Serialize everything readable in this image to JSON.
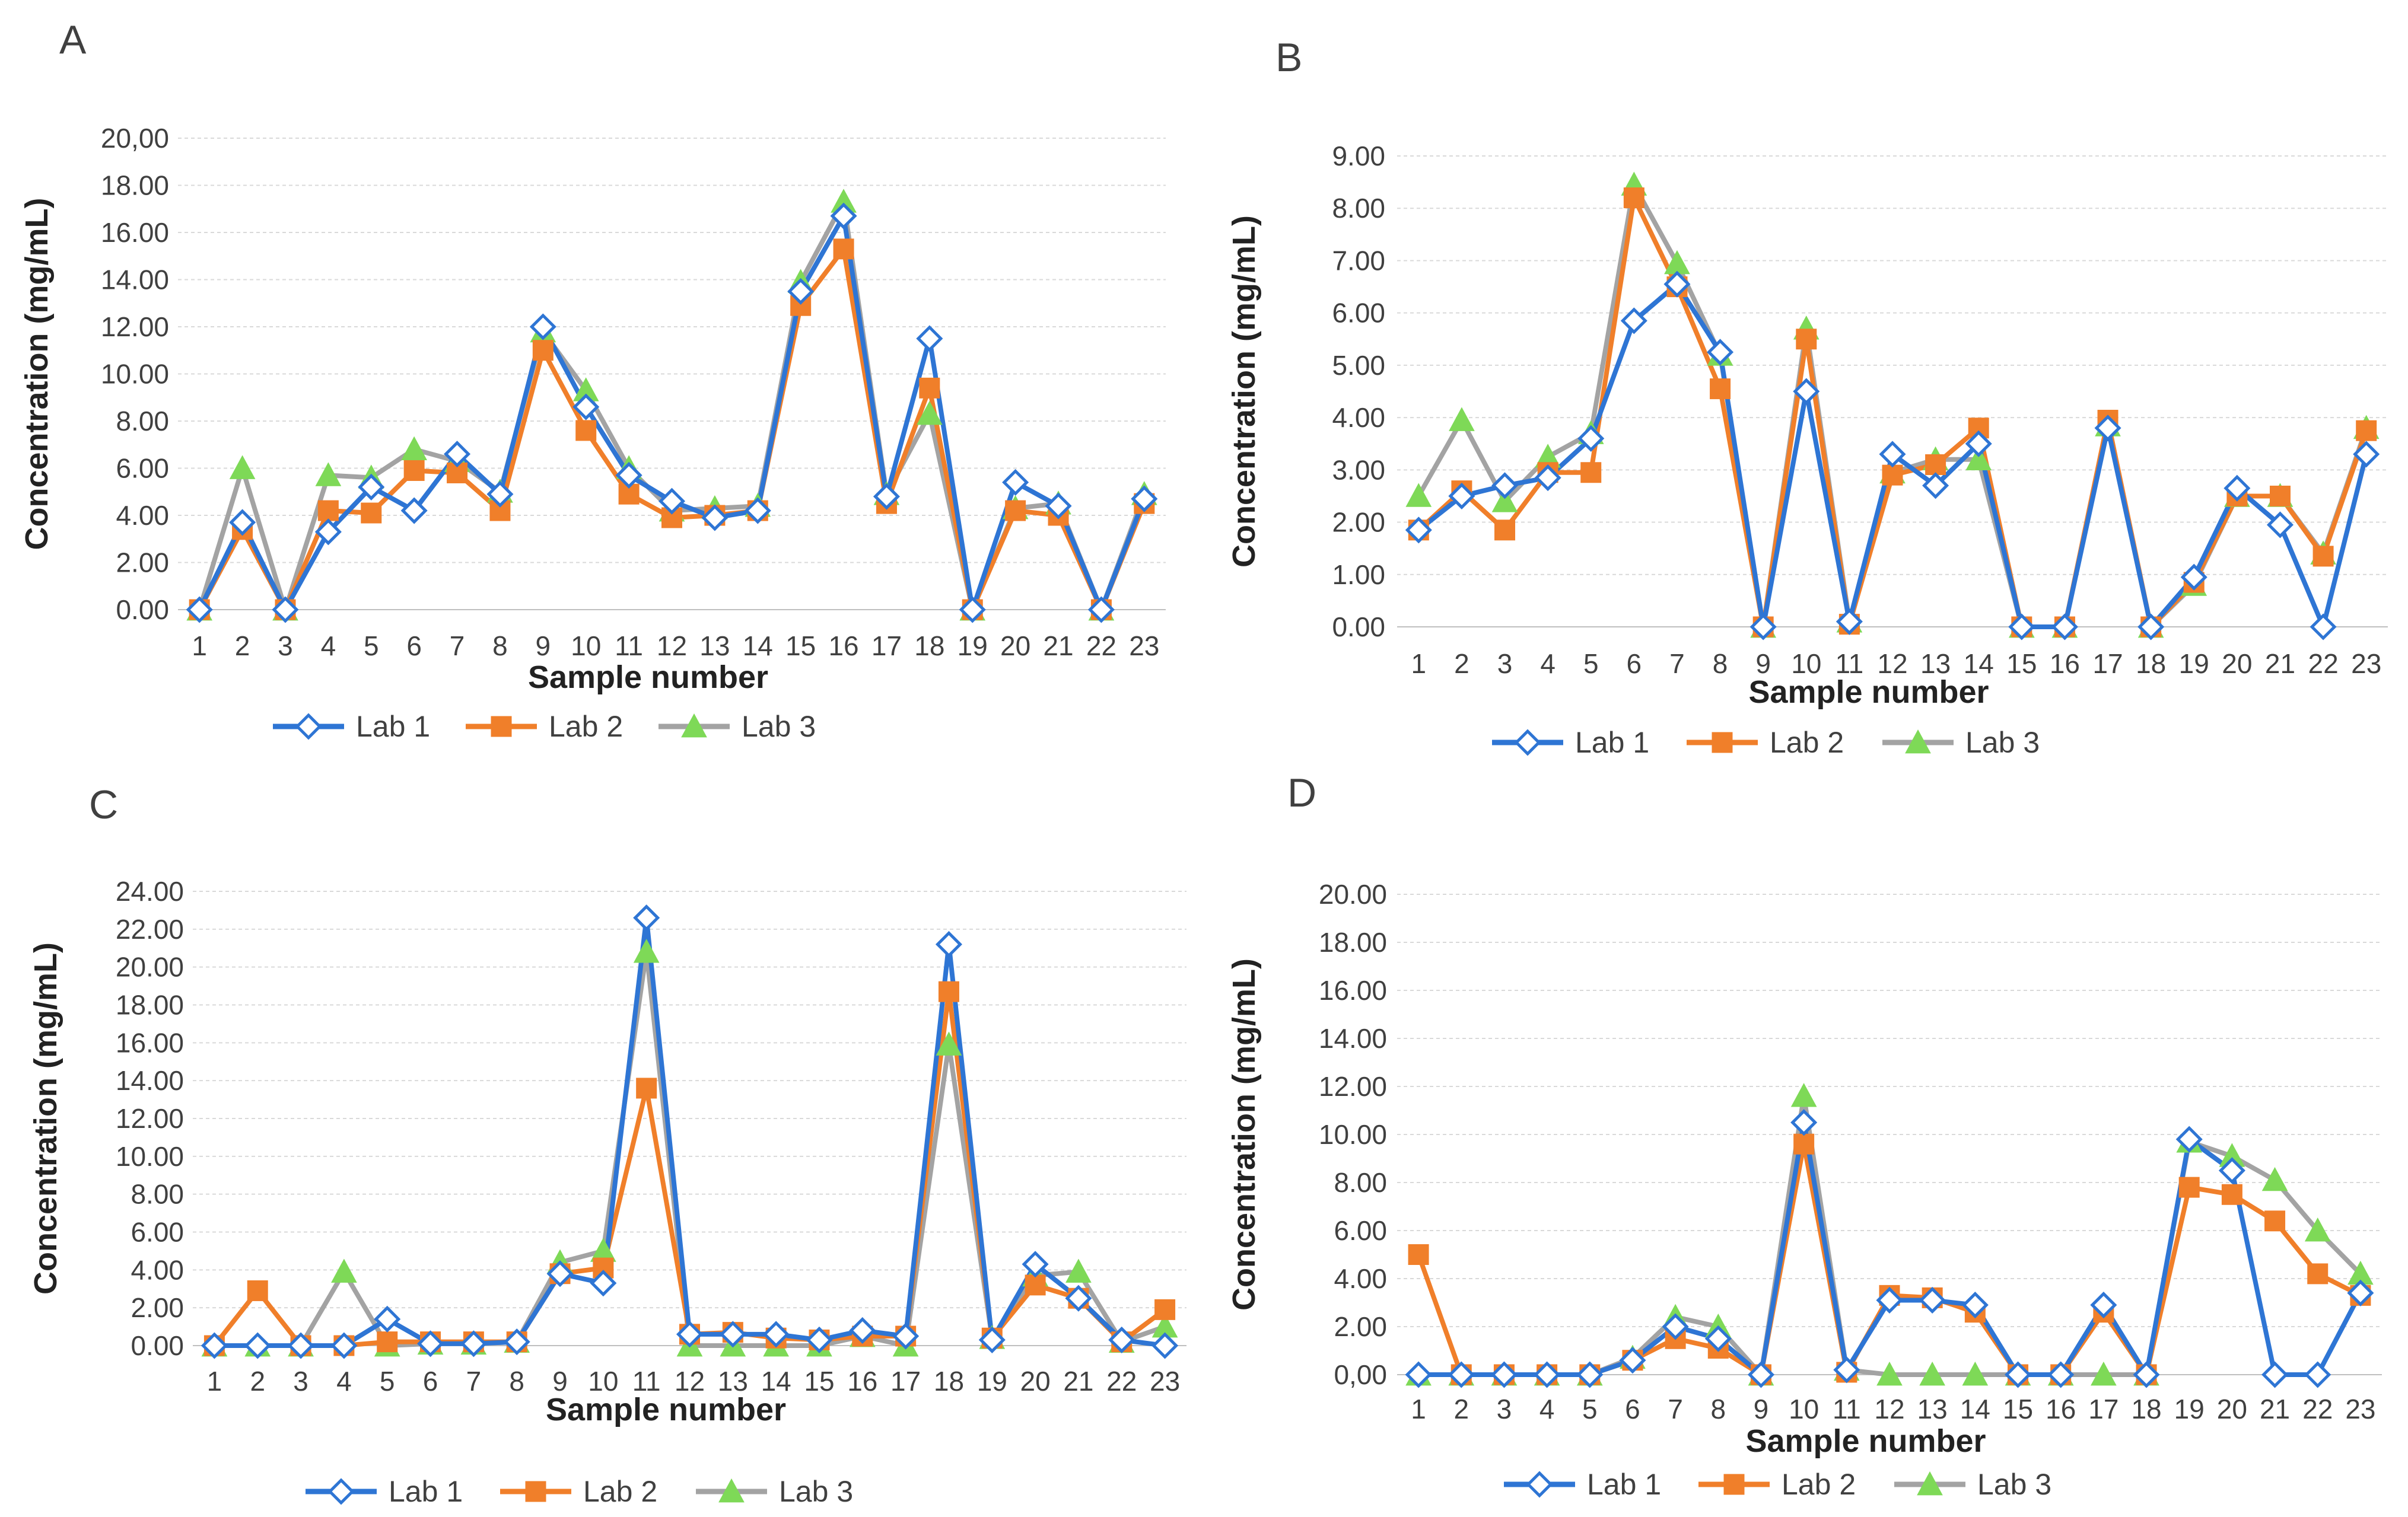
{
  "colors": {
    "lab1": "#2e75d4",
    "lab2": "#f07f2a",
    "lab3": "#a3a3a3",
    "lab3_marker": "#7ed957"
  },
  "chart_data": [
    {
      "type": "line",
      "panel": "A",
      "xlabel": "Sample number",
      "ylabel": "Concentration (mg/mL)",
      "ylim": [
        0,
        20
      ],
      "ytick_labels": [
        "0.00",
        "2.00",
        "4.00",
        "6.00",
        "8.00",
        "10.00",
        "12.00",
        "14.00",
        "16.00",
        "18.00",
        "20,00"
      ],
      "categories": [
        "1",
        "2",
        "3",
        "4",
        "5",
        "6",
        "7",
        "8",
        "9",
        "10",
        "11",
        "12",
        "13",
        "14",
        "15",
        "16",
        "17",
        "18",
        "19",
        "20",
        "21",
        "22",
        "23"
      ],
      "series": [
        {
          "name": "Lab 1",
          "marker": "diamond",
          "values": [
            0,
            3.7,
            0,
            3.3,
            5.2,
            4.2,
            6.6,
            4.9,
            12.0,
            8.6,
            5.7,
            4.6,
            3.9,
            4.2,
            13.5,
            16.7,
            4.8,
            11.5,
            0,
            5.4,
            4.4,
            0,
            4.7
          ]
        },
        {
          "name": "Lab 2",
          "marker": "square",
          "values": [
            0,
            3.4,
            0,
            4.2,
            4.1,
            5.9,
            5.8,
            4.2,
            11.0,
            7.6,
            4.9,
            3.9,
            4.0,
            4.2,
            12.9,
            15.3,
            4.5,
            9.4,
            0,
            4.2,
            4.0,
            0,
            4.5
          ]
        },
        {
          "name": "Lab 3",
          "marker": "triangle",
          "values": [
            0,
            6.0,
            0,
            5.7,
            5.6,
            6.8,
            6.3,
            5.0,
            11.8,
            9.3,
            6.0,
            4.2,
            4.3,
            4.4,
            13.9,
            17.3,
            4.9,
            8.3,
            0,
            4.3,
            4.5,
            0,
            4.9
          ]
        }
      ]
    },
    {
      "type": "line",
      "panel": "B",
      "xlabel": "Sample number",
      "ylabel": "Concentration (mg/mL)",
      "ylim": [
        0,
        9
      ],
      "ytick_labels": [
        "0.00",
        "1.00",
        "2.00",
        "3.00",
        "4.00",
        "5.00",
        "6.00",
        "7.00",
        "8.00",
        "9.00"
      ],
      "categories": [
        "1",
        "2",
        "3",
        "4",
        "5",
        "6",
        "7",
        "8",
        "9",
        "10",
        "11",
        "12",
        "13",
        "14",
        "15",
        "16",
        "17",
        "18",
        "19",
        "20",
        "21",
        "22",
        "23"
      ],
      "series": [
        {
          "name": "Lab 1",
          "marker": "diamond",
          "values": [
            1.85,
            2.5,
            2.7,
            2.85,
            3.6,
            5.85,
            6.55,
            5.25,
            0,
            4.5,
            0.1,
            3.3,
            2.7,
            3.5,
            0,
            0,
            3.8,
            0,
            0.95,
            2.65,
            1.95,
            0,
            3.3
          ]
        },
        {
          "name": "Lab 2",
          "marker": "square",
          "values": [
            1.85,
            2.6,
            1.85,
            2.95,
            2.95,
            8.2,
            6.5,
            4.55,
            0,
            5.5,
            0.05,
            2.9,
            3.1,
            3.8,
            0,
            0,
            3.95,
            0,
            0.85,
            2.5,
            2.5,
            1.35,
            3.75
          ]
        },
        {
          "name": "Lab 3",
          "marker": "triangle",
          "values": [
            2.5,
            3.95,
            2.4,
            3.25,
            3.7,
            8.45,
            6.95,
            5.2,
            0,
            5.7,
            0.1,
            2.95,
            3.2,
            3.2,
            0,
            0,
            3.85,
            0,
            0.8,
            2.5,
            2.5,
            1.4,
            3.8
          ]
        }
      ]
    },
    {
      "type": "line",
      "panel": "C",
      "xlabel": "Sample number",
      "ylabel": "Concentration (mg/mL)",
      "ylim": [
        0,
        24
      ],
      "ytick_labels": [
        "0.00",
        "2.00",
        "4.00",
        "6.00",
        "8.00",
        "10.00",
        "12.00",
        "14.00",
        "16.00",
        "18.00",
        "20.00",
        "22.00",
        "24.00"
      ],
      "categories": [
        "1",
        "2",
        "3",
        "4",
        "5",
        "6",
        "7",
        "8",
        "9",
        "10",
        "11",
        "12",
        "13",
        "14",
        "15",
        "16",
        "17",
        "18",
        "19",
        "20",
        "21",
        "22",
        "23"
      ],
      "series": [
        {
          "name": "Lab 1",
          "marker": "diamond",
          "values": [
            0,
            0,
            0,
            0,
            1.4,
            0.1,
            0.1,
            0.2,
            3.8,
            3.3,
            22.6,
            0.6,
            0.6,
            0.6,
            0.3,
            0.8,
            0.5,
            21.2,
            0.3,
            4.3,
            2.5,
            0.3,
            0
          ]
        },
        {
          "name": "Lab 2",
          "marker": "square",
          "values": [
            0,
            2.9,
            0,
            0,
            0.2,
            0.2,
            0.2,
            0.2,
            3.8,
            4.1,
            13.6,
            0.6,
            0.7,
            0.4,
            0.3,
            0.5,
            0.5,
            18.7,
            0.4,
            3.2,
            2.5,
            0.2,
            1.9
          ]
        },
        {
          "name": "Lab 3",
          "marker": "triangle",
          "values": [
            0,
            0,
            0,
            3.9,
            0,
            0.1,
            0.1,
            0.2,
            4.4,
            5.0,
            20.8,
            0,
            0,
            0,
            0,
            0.5,
            0,
            15.9,
            0.4,
            3.7,
            3.9,
            0.2,
            1.0
          ]
        }
      ]
    },
    {
      "type": "line",
      "panel": "D",
      "xlabel": "Sample number",
      "ylabel": "Concentration (mg/mL)",
      "ylim": [
        0,
        20
      ],
      "ytick_labels": [
        "0,00",
        "2.00",
        "4.00",
        "6.00",
        "8.00",
        "10.00",
        "12.00",
        "14.00",
        "16.00",
        "18.00",
        "20.00"
      ],
      "categories": [
        "1",
        "2",
        "3",
        "4",
        "5",
        "6",
        "7",
        "8",
        "9",
        "10",
        "11",
        "12",
        "13",
        "14",
        "15",
        "16",
        "17",
        "18",
        "19",
        "20",
        "21",
        "22",
        "23"
      ],
      "series": [
        {
          "name": "Lab 1",
          "marker": "diamond",
          "values": [
            0,
            0,
            0,
            0,
            0,
            0.6,
            2.0,
            1.5,
            0,
            10.5,
            0.2,
            3.1,
            3.1,
            2.9,
            0,
            0,
            2.9,
            0,
            9.8,
            8.5,
            0,
            0,
            3.4
          ]
        },
        {
          "name": "Lab 2",
          "marker": "square",
          "values": [
            5.0,
            0,
            0,
            0,
            0,
            0.6,
            1.5,
            1.1,
            0,
            9.6,
            0.1,
            3.3,
            3.2,
            2.6,
            0,
            0,
            2.6,
            0,
            7.8,
            7.5,
            6.4,
            4.2,
            3.3
          ]
        },
        {
          "name": "Lab 3",
          "marker": "triangle",
          "values": [
            0,
            0,
            0,
            0,
            0,
            0.7,
            2.4,
            2.0,
            0,
            11.6,
            0.2,
            0,
            0,
            0,
            0,
            0,
            0,
            0,
            9.7,
            9.1,
            8.1,
            6.0,
            4.2
          ]
        }
      ]
    }
  ]
}
